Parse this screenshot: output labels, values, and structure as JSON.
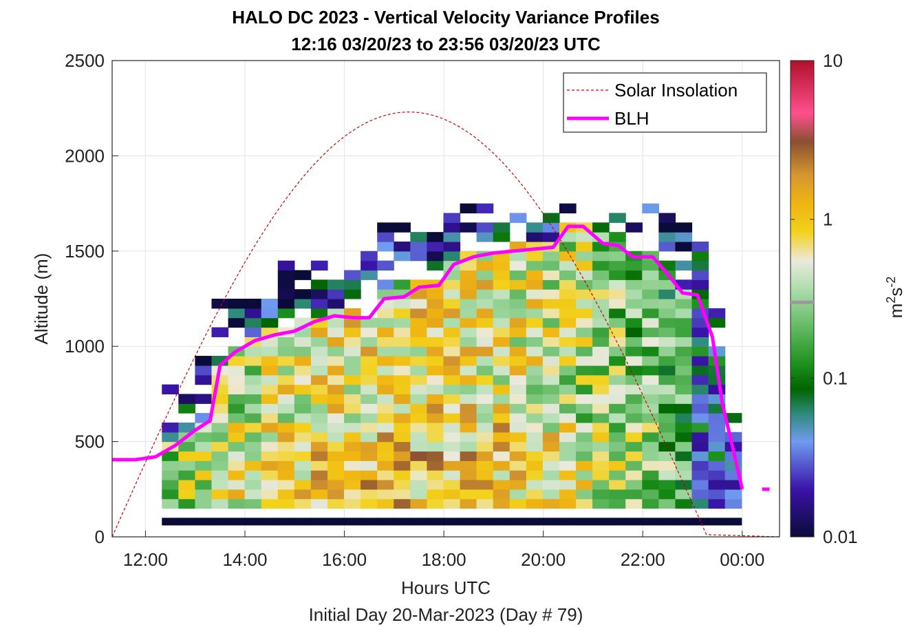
{
  "chart_data": {
    "type": "heatmap",
    "title": "HALO DC 2023 - Vertical Velocity Variance Profiles",
    "subtitle": "12:16 03/20/23 to 23:56 03/20/23  UTC",
    "xlabel": "Hours UTC",
    "xlabel2": "Initial Day 20-Mar-2023 (Day # 79)",
    "ylabel": "Altitude (m)",
    "xlim": [
      11.33,
      24.75
    ],
    "ylim": [
      0,
      2500
    ],
    "x_ticks": [
      12,
      14,
      16,
      18,
      20,
      22,
      24
    ],
    "x_tick_labels": [
      "12:00",
      "14:00",
      "16:00",
      "18:00",
      "20:00",
      "22:00",
      "00:00"
    ],
    "y_ticks": [
      0,
      500,
      1000,
      1500,
      2000,
      2500
    ],
    "y_tick_labels": [
      "0",
      "500",
      "1000",
      "1500",
      "2000",
      "2500"
    ],
    "grid": true,
    "legend_position": "top-right",
    "legend": [
      {
        "label": "Solar Insolation",
        "style": "dashed",
        "color": "#cc0000"
      },
      {
        "label": "BLH",
        "style": "solid",
        "color": "#ff00ff"
      }
    ],
    "colorbar": {
      "scale": "log",
      "range": [
        0.01,
        10
      ],
      "ticks": [
        0.01,
        0.1,
        1,
        10
      ],
      "tick_labels": [
        "0.01",
        "0.1",
        "1",
        "10"
      ],
      "label_base": "m",
      "label_sup1": "2",
      "label_mid": "s",
      "label_sup2": "-2",
      "marker_value": 0.3
    },
    "heatmap": {
      "x_start": 12.33,
      "x_end": 24.0,
      "bin_width_hours": 0.333,
      "bin_height_m": 50,
      "lowest_bin_m": 100,
      "value_units": "m2 s-2",
      "value_range_observed": [
        0.01,
        5
      ]
    },
    "blh_series": {
      "name": "BLH",
      "x": [
        11.33,
        11.8,
        12.2,
        12.6,
        13.0,
        13.3,
        13.5,
        13.8,
        14.2,
        14.6,
        15.0,
        15.4,
        15.8,
        16.2,
        16.5,
        16.8,
        17.2,
        17.5,
        17.9,
        18.2,
        18.6,
        19.0,
        19.4,
        19.8,
        20.2,
        20.5,
        20.8,
        21.2,
        21.5,
        21.8,
        22.2,
        22.5,
        22.8,
        23.1,
        23.4,
        23.6,
        23.8,
        24.0
      ],
      "y": [
        405,
        405,
        420,
        480,
        560,
        610,
        900,
        970,
        1030,
        1060,
        1080,
        1130,
        1160,
        1150,
        1150,
        1250,
        1260,
        1310,
        1320,
        1430,
        1470,
        1490,
        1500,
        1510,
        1520,
        1630,
        1630,
        1540,
        1530,
        1470,
        1470,
        1380,
        1280,
        1270,
        1050,
        700,
        480,
        250
      ],
      "x_tail": [
        24.4,
        24.55
      ],
      "y_tail": [
        250,
        250
      ]
    },
    "solar_series": {
      "name": "Solar Insolation",
      "peak_hour": 17.3,
      "peak_altitude_equiv": 2230,
      "zero_hour": 23.3,
      "zero_to": 24.75
    }
  }
}
